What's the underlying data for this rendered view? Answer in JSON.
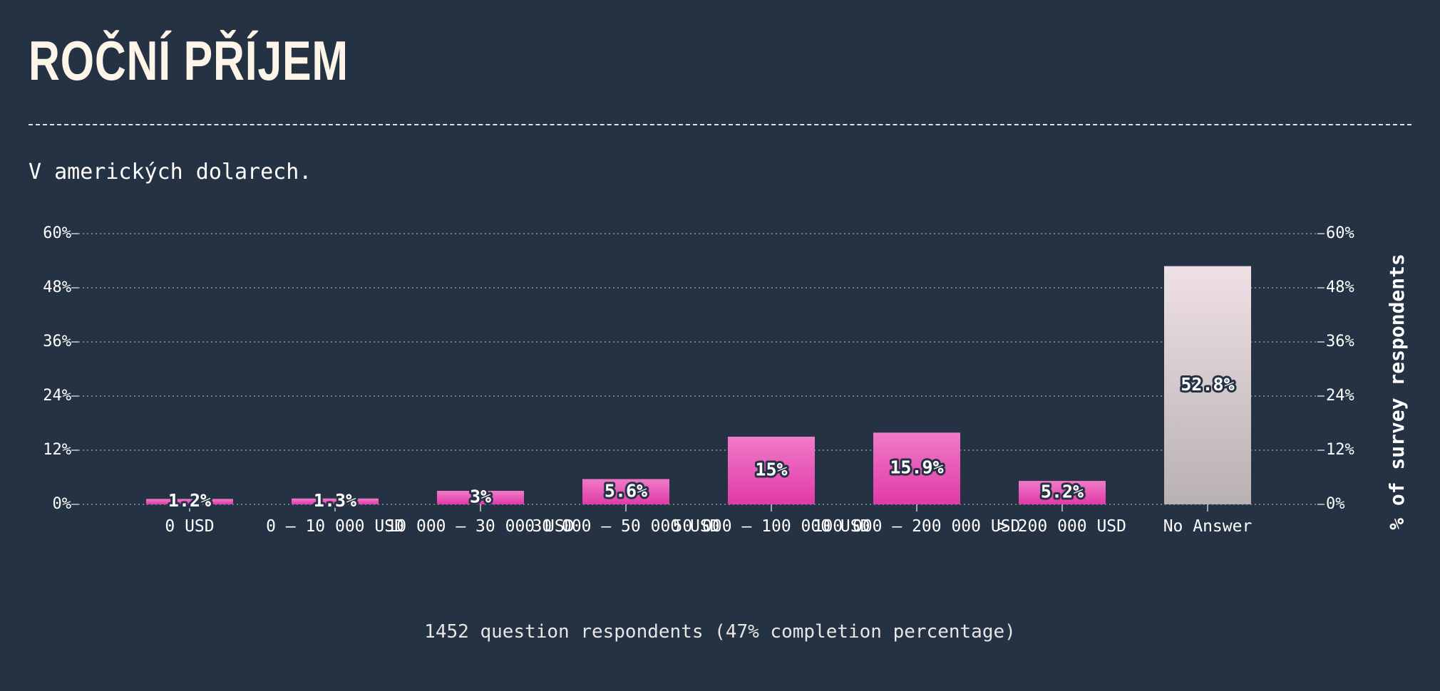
{
  "header": {
    "title": "ROČNÍ PŘÍJEM",
    "subtitle": "V amerických dolarech."
  },
  "footer": {
    "respondents": "1452 question respondents (47% completion percentage)"
  },
  "colors": {
    "background": "#253243",
    "bar_top": "#f07ac8",
    "bar_bottom": "#e03aa8",
    "na_top": "#efe0e6",
    "na_bottom": "#b8b1b3"
  },
  "chart_data": {
    "type": "bar",
    "categories": [
      "0 USD",
      "0 – 10 000 USD",
      "10 000 – 30 000 USD",
      "30 000 – 50 000 USD",
      "50 000 – 100 000 USD",
      "100 000 – 200 000 USD",
      "> 200 000 USD",
      "No Answer"
    ],
    "values": [
      1.2,
      1.3,
      3,
      5.6,
      15,
      15.9,
      5.2,
      52.8
    ],
    "value_labels": [
      "1.2%",
      "1.3%",
      "3%",
      "5.6%",
      "15%",
      "15.9%",
      "5.2%",
      "52.8%"
    ],
    "yticks": [
      "0%",
      "12%",
      "24%",
      "36%",
      "48%",
      "60%"
    ],
    "ylim": [
      0,
      60
    ],
    "ylabel": "% of survey respondents",
    "grid": true
  }
}
